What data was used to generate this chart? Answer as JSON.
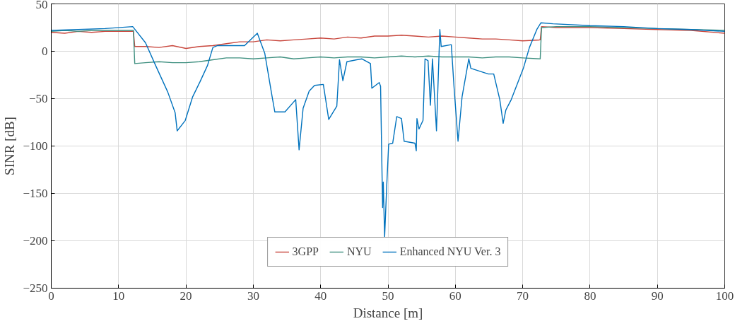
{
  "chart_data": {
    "type": "line",
    "xlabel": "Distance [m]",
    "ylabel": "SINR [dB]",
    "xlim": [
      0,
      100
    ],
    "ylim": [
      -250,
      50
    ],
    "xticks": [
      0,
      10,
      20,
      30,
      40,
      50,
      60,
      70,
      80,
      90,
      100
    ],
    "yticks": [
      -250,
      -200,
      -150,
      -100,
      -50,
      0,
      50
    ],
    "grid": true,
    "legend": "bottom",
    "line_style": "solid",
    "series": [
      {
        "name": "3GPP",
        "color": "#c8463c",
        "x": [
          0,
          2,
          4,
          6,
          8,
          10,
          12.2,
          12.4,
          14,
          16,
          18,
          20,
          22,
          24,
          26,
          28,
          30,
          32,
          34,
          36,
          38,
          40,
          42,
          44,
          46,
          48,
          50,
          52,
          54,
          56,
          58,
          60,
          62,
          64,
          66,
          68,
          70,
          72.6,
          72.8,
          75,
          80,
          85,
          90,
          95,
          100
        ],
        "values": [
          20,
          19,
          21,
          20,
          21,
          21,
          21,
          5,
          5,
          4,
          6,
          3,
          5,
          6,
          8,
          10,
          10,
          12,
          11,
          12,
          13,
          14,
          13,
          15,
          14,
          16,
          16,
          17,
          16,
          15,
          16,
          15,
          14,
          13,
          13,
          12,
          11,
          12,
          26,
          25,
          25,
          24,
          23,
          22,
          19
        ]
      },
      {
        "name": "NYU",
        "color": "#3f9080",
        "x": [
          0,
          2,
          4,
          6,
          8,
          10,
          12.2,
          12.4,
          14,
          16,
          18,
          20,
          22,
          24,
          26,
          28,
          30,
          32,
          34,
          36,
          38,
          40,
          42,
          44,
          46,
          48,
          50,
          52,
          54,
          56,
          58,
          60,
          62,
          64,
          66,
          68,
          70,
          72.6,
          72.8,
          75,
          80,
          85,
          90,
          95,
          100
        ],
        "values": [
          21,
          22,
          21,
          22,
          22,
          22,
          22,
          -13,
          -12,
          -11,
          -12,
          -12,
          -11,
          -9,
          -7,
          -7,
          -8,
          -7,
          -6,
          -8,
          -7,
          -6,
          -7,
          -6,
          -6,
          -7,
          -6,
          -5,
          -6,
          -5,
          -6,
          -6,
          -6,
          -7,
          -6,
          -6,
          -7,
          -8,
          25,
          26,
          26,
          25,
          24,
          23,
          22
        ]
      },
      {
        "name": "Enhanced NYU Ver. 3",
        "color": "#0072bd",
        "x": [
          0,
          4,
          8,
          12.1,
          14,
          15.5,
          17.3,
          18.4,
          18.7,
          19.9,
          21,
          22.1,
          23.2,
          24,
          24.7,
          28.7,
          30.6,
          31.7,
          32.8,
          33.2,
          34.7,
          36.3,
          36.8,
          37.4,
          38.3,
          39.1,
          40.4,
          41.2,
          42.4,
          42.8,
          43.3,
          43.9,
          46.1,
          47.4,
          47.6,
          48.7,
          48.9,
          49.2,
          49.3,
          49.5,
          49.8,
          50.1,
          50.7,
          51.3,
          52,
          52.4,
          54,
          54.2,
          54.3,
          54.6,
          55.2,
          55.5,
          55.95,
          56.3,
          56.6,
          57.2,
          57.7,
          57.9,
          59.4,
          59.8,
          60.4,
          61,
          62,
          62.3,
          64.9,
          65.7,
          66.6,
          67.1,
          67.5,
          68.3,
          70.1,
          71,
          72.1,
          72.7,
          74.5,
          80,
          85,
          90,
          95,
          100
        ],
        "values": [
          22,
          23,
          24,
          26,
          9,
          -15,
          -43,
          -65,
          -84,
          -73,
          -48,
          -32,
          -15,
          4,
          6,
          6,
          19,
          -2,
          -48,
          -64,
          -64,
          -51,
          -104,
          -60,
          -42,
          -36,
          -35,
          -72,
          -58,
          -9,
          -31,
          -11,
          -8,
          -13,
          -39,
          -33,
          -37,
          -165,
          -138,
          -196,
          -144,
          -98,
          -97,
          -69,
          -71,
          -95,
          -97,
          -105,
          -71,
          -82,
          -73,
          -8,
          -10,
          -57,
          -8,
          -84,
          23,
          5,
          7,
          -37,
          -95,
          -48,
          -8,
          -18,
          -24,
          -24,
          -51,
          -76,
          -62,
          -51,
          -18,
          4,
          23,
          30,
          29,
          27,
          26,
          24,
          23,
          21
        ]
      }
    ]
  }
}
